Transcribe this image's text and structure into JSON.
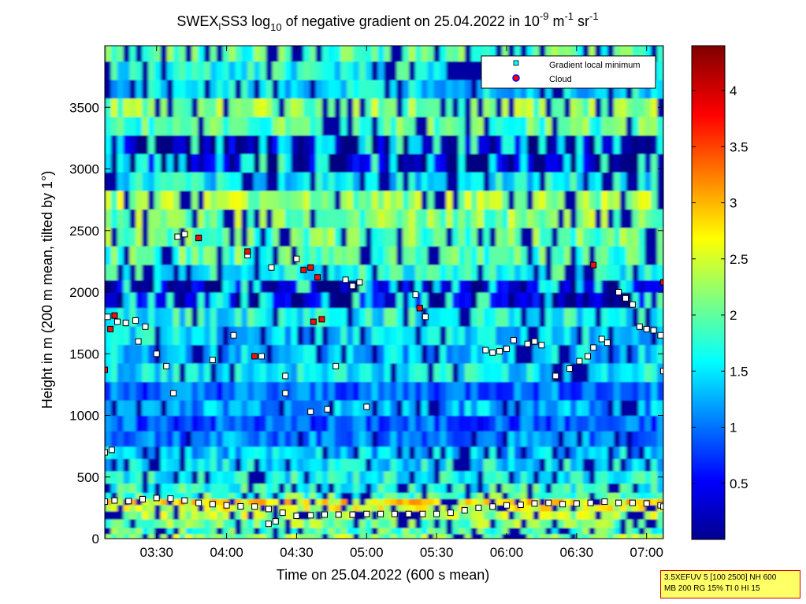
{
  "chart_data": {
    "type": "heatmap",
    "title": {
      "prefix": "SWEX",
      "subscript_part": "l",
      "after_sub": "SS3 log",
      "log_base": "10",
      "middle": " of negative gradient on 25.04.2022 in 10",
      "exp1": "-9",
      "unit_mid": " m",
      "exp2": "-1",
      "unit_end": " sr",
      "exp3": "-1"
    },
    "xlabel": "Time on 25.04.2022 (600 s mean)",
    "ylabel": "Height in m (200 m mean, tilted by 1°)",
    "x_ticks": [
      "03:30",
      "04:00",
      "04:30",
      "05:00",
      "05:30",
      "06:00",
      "06:30",
      "07:00"
    ],
    "x_tick_hours": [
      3.5,
      4.0,
      4.5,
      5.0,
      5.5,
      6.0,
      6.5,
      7.0
    ],
    "xlim_hours": [
      3.13,
      7.12
    ],
    "y_ticks": [
      "0",
      "500",
      "1000",
      "1500",
      "2000",
      "2500",
      "3000",
      "3500"
    ],
    "y_tick_values": [
      0,
      500,
      1000,
      1500,
      2000,
      2500,
      3000,
      3500
    ],
    "ylim": [
      0,
      4000
    ],
    "colorbar": {
      "ticks": [
        "0.5",
        "1",
        "1.5",
        "2",
        "2.5",
        "3",
        "3.5",
        "4"
      ],
      "tick_values": [
        0.5,
        1,
        1.5,
        2,
        2.5,
        3,
        3.5,
        4
      ],
      "range": [
        0,
        4.4
      ],
      "colormap": "jet"
    },
    "legend": {
      "position": "top-right",
      "entries": [
        {
          "label": "Gradient local minimum",
          "marker": "square",
          "color": "#00ffff"
        },
        {
          "label": "Cloud",
          "marker": "circle",
          "color": "#ff0000",
          "edge": "#0000ff"
        }
      ]
    },
    "layers": [
      {
        "height_m": 20,
        "value": 2.3
      },
      {
        "height_m": 60,
        "value": 2.0
      },
      {
        "height_m": 120,
        "value": 2.2
      },
      {
        "height_m": 200,
        "value": 2.4
      },
      {
        "height_m": 250,
        "value": 2.6
      },
      {
        "height_m": 300,
        "value": 2.8
      },
      {
        "height_m": 350,
        "value": 2.0
      },
      {
        "height_m": 400,
        "value": 1.8
      },
      {
        "height_m": 500,
        "value": 1.7
      },
      {
        "height_m": 600,
        "value": 1.6
      },
      {
        "height_m": 700,
        "value": 1.4
      },
      {
        "height_m": 800,
        "value": 1.1
      },
      {
        "height_m": 950,
        "value": 0.9
      },
      {
        "height_m": 1050,
        "value": 1.3
      },
      {
        "height_m": 1200,
        "value": 1.0
      },
      {
        "height_m": 1350,
        "value": 1.6
      },
      {
        "height_m": 1500,
        "value": 1.4
      },
      {
        "height_m": 1650,
        "value": 1.5
      },
      {
        "height_m": 1800,
        "value": 1.7
      },
      {
        "height_m": 1950,
        "value": 0.3
      },
      {
        "height_m": 2050,
        "value": 0.2
      },
      {
        "height_m": 2150,
        "value": 1.8
      },
      {
        "height_m": 2300,
        "value": 2.0
      },
      {
        "height_m": 2450,
        "value": 2.1
      },
      {
        "height_m": 2600,
        "value": 2.2
      },
      {
        "height_m": 2750,
        "value": 2.3
      },
      {
        "height_m": 2900,
        "value": 1.6
      },
      {
        "height_m": 3050,
        "value": 0.2
      },
      {
        "height_m": 3200,
        "value": 0.15
      },
      {
        "height_m": 3350,
        "value": 2.0
      },
      {
        "height_m": 3500,
        "value": 2.2
      },
      {
        "height_m": 3650,
        "value": 1.5
      },
      {
        "height_m": 3800,
        "value": 1.7
      },
      {
        "height_m": 3950,
        "value": 2.0
      }
    ],
    "series": [
      {
        "name": "Gradient local minimum",
        "points": [
          [
            3.13,
            300
          ],
          [
            3.2,
            310
          ],
          [
            3.3,
            305
          ],
          [
            3.4,
            320
          ],
          [
            3.5,
            330
          ],
          [
            3.6,
            325
          ],
          [
            3.7,
            310
          ],
          [
            3.8,
            290
          ],
          [
            3.9,
            280
          ],
          [
            4.0,
            270
          ],
          [
            4.1,
            262
          ],
          [
            4.2,
            260
          ],
          [
            4.3,
            240
          ],
          [
            4.4,
            210
          ],
          [
            4.5,
            185
          ],
          [
            4.6,
            190
          ],
          [
            4.7,
            195
          ],
          [
            4.8,
            195
          ],
          [
            4.9,
            195
          ],
          [
            5.0,
            200
          ],
          [
            5.1,
            200
          ],
          [
            5.2,
            200
          ],
          [
            5.3,
            200
          ],
          [
            5.4,
            200
          ],
          [
            5.5,
            200
          ],
          [
            5.6,
            210
          ],
          [
            5.7,
            230
          ],
          [
            5.8,
            250
          ],
          [
            5.9,
            260
          ],
          [
            6.0,
            270
          ],
          [
            6.1,
            275
          ],
          [
            6.2,
            285
          ],
          [
            6.3,
            290
          ],
          [
            6.4,
            280
          ],
          [
            6.5,
            285
          ],
          [
            6.6,
            290
          ],
          [
            6.7,
            300
          ],
          [
            6.8,
            290
          ],
          [
            6.9,
            290
          ],
          [
            7.0,
            285
          ],
          [
            7.1,
            270
          ],
          [
            3.13,
            700
          ],
          [
            3.18,
            720
          ],
          [
            3.15,
            1800
          ],
          [
            3.22,
            1760
          ],
          [
            3.28,
            1750
          ],
          [
            3.35,
            1770
          ],
          [
            3.42,
            1720
          ],
          [
            3.37,
            1600
          ],
          [
            3.5,
            1500
          ],
          [
            3.57,
            1400
          ],
          [
            3.65,
            2450
          ],
          [
            3.7,
            2470
          ],
          [
            3.8,
            2440
          ],
          [
            3.9,
            1450
          ],
          [
            4.05,
            1650
          ],
          [
            4.15,
            2300
          ],
          [
            4.25,
            1480
          ],
          [
            4.32,
            2200
          ],
          [
            4.42,
            1320
          ],
          [
            4.5,
            2270
          ],
          [
            4.6,
            1030
          ],
          [
            4.72,
            1050
          ],
          [
            4.78,
            1400
          ],
          [
            4.85,
            2100
          ],
          [
            4.9,
            2050
          ],
          [
            4.95,
            2080
          ],
          [
            5.0,
            1070
          ],
          [
            5.35,
            1980
          ],
          [
            5.38,
            1870
          ],
          [
            5.42,
            1800
          ],
          [
            5.85,
            1530
          ],
          [
            5.9,
            1510
          ],
          [
            5.95,
            1520
          ],
          [
            6.0,
            1540
          ],
          [
            6.05,
            1610
          ],
          [
            6.15,
            1580
          ],
          [
            6.2,
            1600
          ],
          [
            6.25,
            1570
          ],
          [
            6.35,
            1320
          ],
          [
            6.45,
            1380
          ],
          [
            6.52,
            1440
          ],
          [
            6.58,
            1480
          ],
          [
            6.62,
            1550
          ],
          [
            6.68,
            1620
          ],
          [
            6.72,
            1590
          ],
          [
            6.8,
            2000
          ],
          [
            6.85,
            1950
          ],
          [
            6.9,
            1900
          ],
          [
            6.95,
            1720
          ],
          [
            7.0,
            1700
          ],
          [
            7.05,
            1690
          ],
          [
            7.1,
            1650
          ],
          [
            7.12,
            1360
          ],
          [
            7.12,
            260
          ],
          [
            4.3,
            120
          ],
          [
            4.35,
            140
          ],
          [
            4.42,
            1180
          ],
          [
            3.62,
            1180
          ]
        ]
      },
      {
        "name": "Cloud",
        "points": [
          [
            3.13,
            1370
          ],
          [
            3.17,
            1700
          ],
          [
            3.2,
            1810
          ],
          [
            3.8,
            2440
          ],
          [
            4.15,
            2330
          ],
          [
            4.2,
            1480
          ],
          [
            4.55,
            2180
          ],
          [
            4.6,
            2200
          ],
          [
            4.65,
            2120
          ],
          [
            4.62,
            1760
          ],
          [
            4.68,
            1780
          ],
          [
            5.38,
            1870
          ],
          [
            6.62,
            2220
          ],
          [
            7.12,
            2080
          ]
        ]
      }
    ]
  },
  "info_box": {
    "line1": "3.5XEFUV 5 [100 2500] NH 600",
    "line2": "MB 200 RG 15% TI 0 HI 15"
  }
}
